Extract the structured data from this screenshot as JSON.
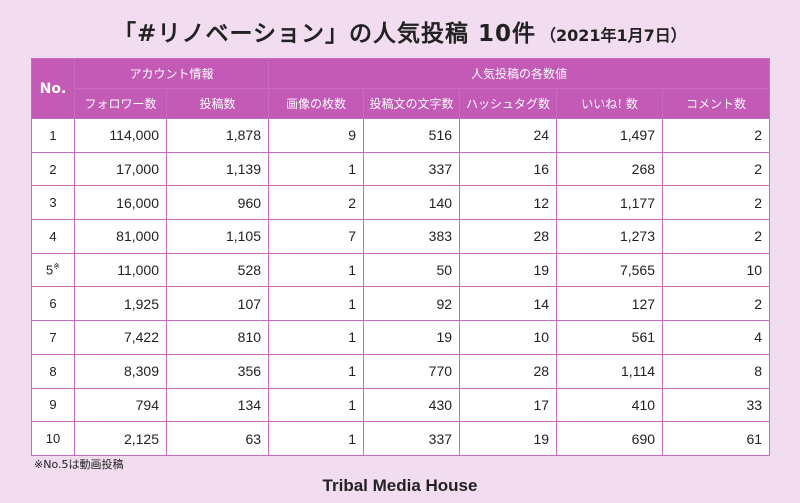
{
  "title": {
    "main": "「#リノベーション」の人気投稿 10件",
    "date": "（2021年1月7日）"
  },
  "table": {
    "col_no": "No.",
    "group_account": "アカウント情報",
    "group_post": "人気投稿の各数値",
    "columns": [
      "フォロワー数",
      "投稿数",
      "画像の枚数",
      "投稿文の文字数",
      "ハッシュタグ数",
      "いいね! 数",
      "コメント数"
    ],
    "rows": [
      {
        "no": "1",
        "mark": "",
        "cells": [
          "114,000",
          "1,878",
          "9",
          "516",
          "24",
          "1,497",
          "2"
        ]
      },
      {
        "no": "2",
        "mark": "",
        "cells": [
          "17,000",
          "1,139",
          "1",
          "337",
          "16",
          "268",
          "2"
        ]
      },
      {
        "no": "3",
        "mark": "",
        "cells": [
          "16,000",
          "960",
          "2",
          "140",
          "12",
          "1,177",
          "2"
        ]
      },
      {
        "no": "4",
        "mark": "",
        "cells": [
          "81,000",
          "1,105",
          "7",
          "383",
          "28",
          "1,273",
          "2"
        ]
      },
      {
        "no": "5",
        "mark": "※",
        "cells": [
          "11,000",
          "528",
          "1",
          "50",
          "19",
          "7,565",
          "10"
        ]
      },
      {
        "no": "6",
        "mark": "",
        "cells": [
          "1,925",
          "107",
          "1",
          "92",
          "14",
          "127",
          "2"
        ]
      },
      {
        "no": "7",
        "mark": "",
        "cells": [
          "7,422",
          "810",
          "1",
          "19",
          "10",
          "561",
          "4"
        ]
      },
      {
        "no": "8",
        "mark": "",
        "cells": [
          "8,309",
          "356",
          "1",
          "770",
          "28",
          "1,114",
          "8"
        ]
      },
      {
        "no": "9",
        "mark": "",
        "cells": [
          "794",
          "134",
          "1",
          "430",
          "17",
          "410",
          "33"
        ]
      },
      {
        "no": "10",
        "mark": "",
        "cells": [
          "2,125",
          "63",
          "1",
          "337",
          "19",
          "690",
          "61"
        ]
      }
    ]
  },
  "note": "※No.5は動画投稿",
  "brand": "Tribal Media House",
  "colors": {
    "header": "#c35ab6",
    "background": "#f2dcef",
    "border": "#c86bbd"
  }
}
